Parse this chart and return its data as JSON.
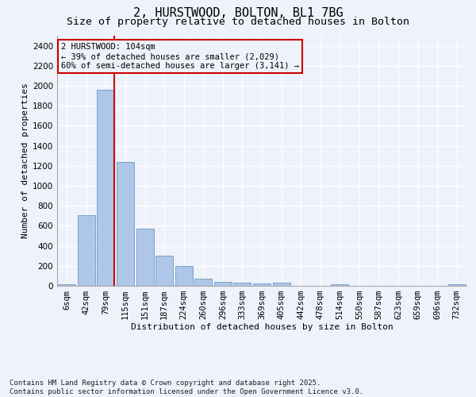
{
  "title1": "2, HURSTWOOD, BOLTON, BL1 7BG",
  "title2": "Size of property relative to detached houses in Bolton",
  "xlabel": "Distribution of detached houses by size in Bolton",
  "ylabel": "Number of detached properties",
  "categories": [
    "6sqm",
    "42sqm",
    "79sqm",
    "115sqm",
    "151sqm",
    "187sqm",
    "224sqm",
    "260sqm",
    "296sqm",
    "333sqm",
    "369sqm",
    "405sqm",
    "442sqm",
    "478sqm",
    "514sqm",
    "550sqm",
    "587sqm",
    "623sqm",
    "659sqm",
    "696sqm",
    "732sqm"
  ],
  "values": [
    15,
    710,
    1960,
    1235,
    575,
    305,
    200,
    75,
    40,
    28,
    20,
    28,
    0,
    0,
    15,
    0,
    0,
    0,
    0,
    0,
    15
  ],
  "bar_color": "#aec6e8",
  "bar_edge_color": "#5b8db8",
  "vline_color": "#cc0000",
  "vline_x_index": 2,
  "annotation_title": "2 HURSTWOOD: 104sqm",
  "annotation_line1": "← 39% of detached houses are smaller (2,029)",
  "annotation_line2": "60% of semi-detached houses are larger (3,141) →",
  "annotation_box_color": "#cc0000",
  "ylim": [
    0,
    2500
  ],
  "yticks": [
    0,
    200,
    400,
    600,
    800,
    1000,
    1200,
    1400,
    1600,
    1800,
    2000,
    2200,
    2400
  ],
  "footer1": "Contains HM Land Registry data © Crown copyright and database right 2025.",
  "footer2": "Contains public sector information licensed under the Open Government Licence v3.0.",
  "background_color": "#eef2fa",
  "grid_color": "#ffffff",
  "title1_fontsize": 11,
  "title2_fontsize": 9.5,
  "ylabel_fontsize": 8,
  "xlabel_fontsize": 8,
  "tick_fontsize": 7.5,
  "annotation_fontsize": 7.5,
  "footer_fontsize": 6.5
}
